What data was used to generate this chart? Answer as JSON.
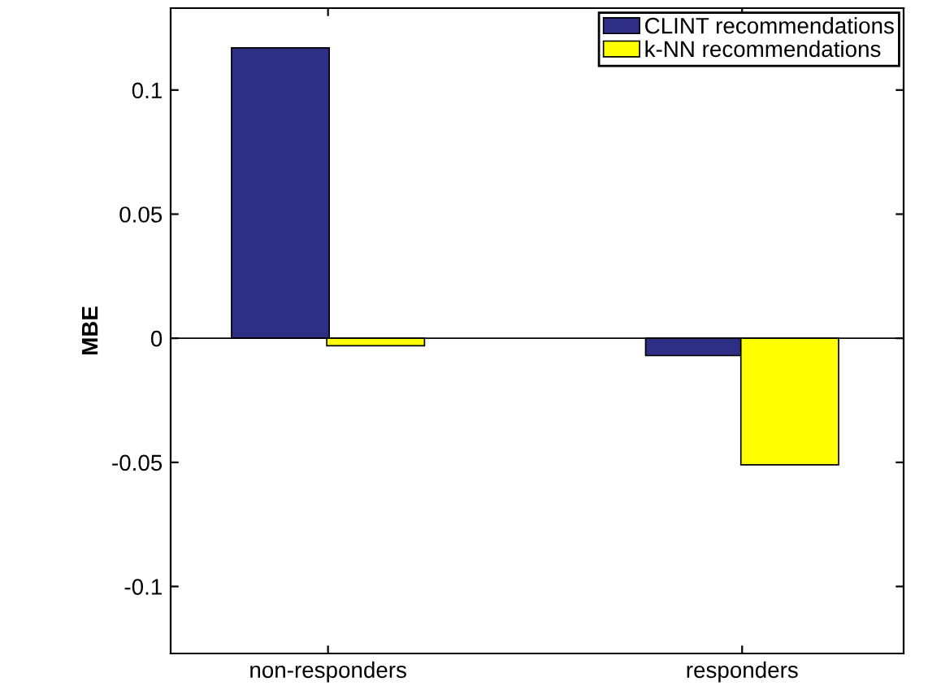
{
  "chart_data": {
    "type": "bar",
    "ylabel": "MBE",
    "categories": [
      "non-responders",
      "responders"
    ],
    "series": [
      {
        "name": "CLINT recommendations",
        "color": "#2e2e84",
        "values": [
          0.117,
          -0.007
        ]
      },
      {
        "name": "k-NN recommendations",
        "color": "#ffff00",
        "values": [
          -0.003,
          -0.051
        ]
      }
    ],
    "ylim": [
      -0.127,
      0.133
    ],
    "yticks": [
      {
        "value": -0.1,
        "label": "-0.1"
      },
      {
        "value": -0.05,
        "label": "-0.05"
      },
      0,
      0.05,
      0.1
    ],
    "legend": "top right"
  }
}
